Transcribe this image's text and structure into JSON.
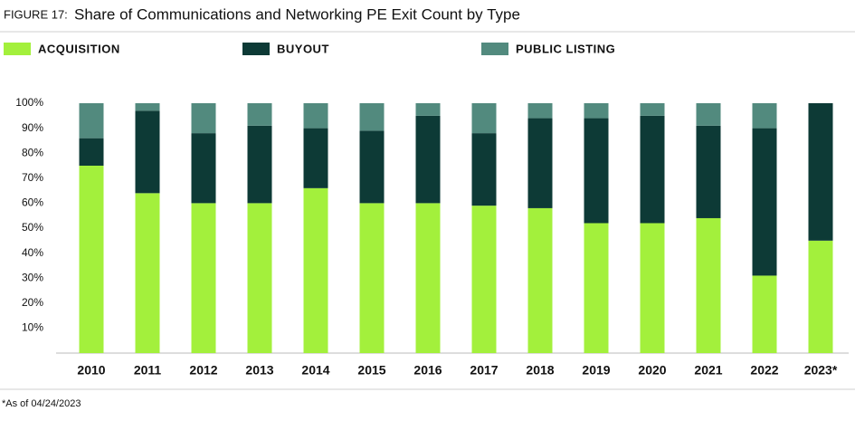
{
  "chart_data": {
    "type": "stacked_bar",
    "figure_label": "FIGURE 17:",
    "title": "Share of Communications and Networking PE Exit Count by Type",
    "categories": [
      "2010",
      "2011",
      "2012",
      "2013",
      "2014",
      "2015",
      "2016",
      "2017",
      "2018",
      "2019",
      "2020",
      "2021",
      "2022",
      "2023*"
    ],
    "series": [
      {
        "name": "ACQUISITION",
        "color": "#a3f03c",
        "values": [
          75,
          64,
          60,
          60,
          66,
          60,
          60,
          59,
          58,
          52,
          52,
          54,
          31,
          45
        ]
      },
      {
        "name": "BUYOUT",
        "color": "#0d3a36",
        "values": [
          11,
          33,
          28,
          31,
          24,
          29,
          35,
          29,
          36,
          42,
          43,
          37,
          59,
          55
        ]
      },
      {
        "name": "PUBLIC LISTING",
        "color": "#528a7e",
        "values": [
          14,
          3,
          12,
          9,
          10,
          11,
          5,
          12,
          6,
          6,
          5,
          9,
          10,
          0
        ]
      }
    ],
    "ylim": [
      0,
      100
    ],
    "yticks": [
      {
        "value": 10,
        "label": "10%"
      },
      {
        "value": 20,
        "label": "20%"
      },
      {
        "value": 30,
        "label": "30%"
      },
      {
        "value": 40,
        "label": "40%"
      },
      {
        "value": 50,
        "label": "50%"
      },
      {
        "value": 60,
        "label": "60%"
      },
      {
        "value": 70,
        "label": "70%"
      },
      {
        "value": 80,
        "label": "80%"
      },
      {
        "value": 90,
        "label": "90%"
      },
      {
        "value": 100,
        "label": "100%"
      }
    ],
    "footnote": "*As of 04/24/2023"
  }
}
